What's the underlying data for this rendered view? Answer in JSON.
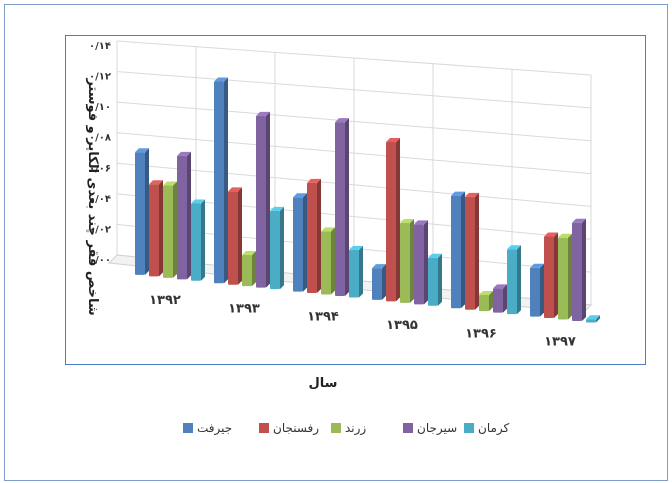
{
  "chart_data": {
    "type": "bar",
    "title": "",
    "xlabel": "سال",
    "ylabel": "شاخص فقر چند بعدی الکاپر و فوستر",
    "categories": [
      "۱۳۹۲",
      "۱۳۹۳",
      "۱۳۹۴",
      "۱۳۹۵",
      "۱۳۹۶",
      "۱۳۹۷"
    ],
    "yticks": [
      "۰/۰۰",
      "۰/۰۲",
      "۰/۰۴",
      "۰/۰۶",
      "۰/۰۸",
      "۰/۱۰",
      "۰/۱۲",
      "۰/۱۴"
    ],
    "ylim": [
      0,
      0.14
    ],
    "grid": true,
    "legend_position": "bottom",
    "series": [
      {
        "name": "جیرفت",
        "color": "#4f81bd",
        "values": [
          0.08,
          0.13,
          0.06,
          0.02,
          0.07,
          0.03
        ]
      },
      {
        "name": "رفسنجان",
        "color": "#c0504d",
        "values": [
          0.06,
          0.06,
          0.07,
          0.1,
          0.07,
          0.05
        ]
      },
      {
        "name": "زرند",
        "color": "#9bbb59",
        "values": [
          0.06,
          0.02,
          0.04,
          0.05,
          0.01,
          0.05
        ]
      },
      {
        "name": "سیرجان",
        "color": "#8064a2",
        "values": [
          0.08,
          0.11,
          0.11,
          0.05,
          0.015,
          0.06
        ]
      },
      {
        "name": "کرمان",
        "color": "#4bacc6",
        "values": [
          0.05,
          0.05,
          0.03,
          0.03,
          0.04,
          0.002
        ]
      }
    ]
  }
}
